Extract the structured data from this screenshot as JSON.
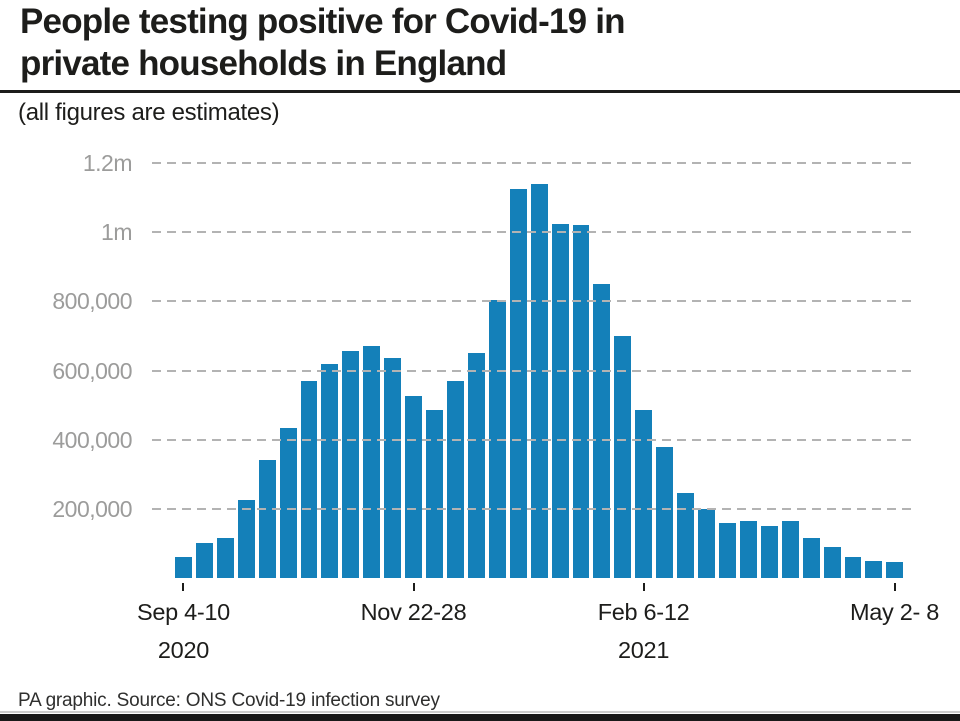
{
  "header": {
    "title_line1": "People testing positive for Covid-19 in",
    "title_line2": "private households in England",
    "subtitle": "(all figures are estimates)"
  },
  "footer": {
    "source": "PA graphic. Source: ONS Covid-19 infection survey"
  },
  "colors": {
    "bar": "#1480b9",
    "grid": "#b3b3b3",
    "y_axis_labels": "#9c9c9b",
    "text": "#1d1d1b"
  },
  "chart_data": {
    "type": "bar",
    "title": "People testing positive for Covid-19 in private households in England",
    "subtitle": "(all figures are estimates)",
    "unit": "people (weekly estimate)",
    "grid": "horizontal-dashed",
    "legend": "none",
    "ylim": [
      0,
      1250000
    ],
    "bar_color": "#1480b9",
    "y_ticks": [
      {
        "label": "1.2m",
        "value": 1200000
      },
      {
        "label": "1m",
        "value": 1000000
      },
      {
        "label": "800,000",
        "value": 800000
      },
      {
        "label": "600,000",
        "value": 600000
      },
      {
        "label": "400,000",
        "value": 400000
      },
      {
        "label": "200,000",
        "value": 200000
      }
    ],
    "x_ticks": [
      {
        "label": "Sep 4-10",
        "sublabel": "2020",
        "bar_index": 0
      },
      {
        "label": "Nov 22-28",
        "sublabel": "",
        "bar_index": 11
      },
      {
        "label": "Feb 6-12",
        "sublabel": "2021",
        "bar_index": 22
      },
      {
        "label": "May 2- 8",
        "sublabel": "",
        "bar_index": 34
      }
    ],
    "values": [
      60000,
      100000,
      115000,
      225000,
      340000,
      435000,
      570000,
      620000,
      655000,
      670000,
      635000,
      525000,
      485000,
      570000,
      650000,
      805000,
      1125000,
      1140000,
      1025000,
      1020000,
      850000,
      700000,
      485000,
      380000,
      245000,
      200000,
      160000,
      165000,
      150000,
      165000,
      115000,
      90000,
      60000,
      50000,
      45000
    ]
  }
}
